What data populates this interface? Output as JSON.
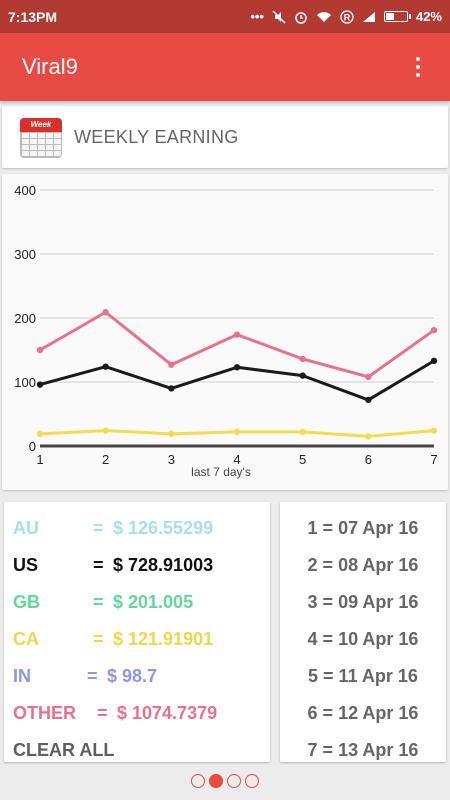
{
  "status_bar": {
    "time": "7:13PM",
    "battery": "42%",
    "battery_level": 0.42,
    "icons": [
      "dots-icon",
      "mute-icon",
      "alarm-icon",
      "wifi-icon",
      "registered-icon",
      "signal-icon",
      "battery-icon"
    ]
  },
  "app_bar": {
    "title": "Viral9"
  },
  "header": {
    "calendar_label": "Week",
    "title": "WEEKLY EARNING"
  },
  "chart_data": {
    "type": "line",
    "x": [
      1,
      2,
      3,
      4,
      5,
      6,
      7
    ],
    "xlabel": "last 7 day's",
    "ylim": [
      0,
      400
    ],
    "yticks": [
      0,
      100,
      200,
      300,
      400
    ],
    "grid": true,
    "series": [
      {
        "color": "#e8718c",
        "values": [
          150,
          209,
          127,
          174,
          136,
          108,
          181
        ]
      },
      {
        "color": "#1a1a1a",
        "values": [
          96,
          124,
          90,
          123,
          110,
          72,
          133
        ]
      },
      {
        "color": "#f5dc4f",
        "values": [
          19,
          24,
          19,
          22,
          22,
          15,
          24
        ]
      }
    ]
  },
  "stats": [
    {
      "country": "AU",
      "eq": "=",
      "amount": "$ 126.55299",
      "color": "#a6dff0"
    },
    {
      "country": "US",
      "eq": "=",
      "amount": "$ 728.91003",
      "color": "#111111"
    },
    {
      "country": "GB",
      "eq": "=",
      "amount": "$ 201.005",
      "color": "#5fd99a"
    },
    {
      "country": "CA",
      "eq": "=",
      "amount": "$ 121.91901",
      "color": "#f0d74a"
    },
    {
      "country": "IN",
      "eq": "=",
      "amount": "$ 98.7",
      "color": "#8f95e8"
    },
    {
      "country": "OTHER",
      "eq": "=",
      "amount": "$ 1074.7379",
      "color": "#e8718c"
    }
  ],
  "clear_all_label": "CLEAR ALL",
  "days": [
    "1 = 07 Apr 16",
    "2 = 08 Apr 16",
    "3 = 09 Apr 16",
    "4 = 10 Apr 16",
    "5 = 11 Apr 16",
    "6 = 12 Apr 16",
    "7 = 13 Apr 16"
  ],
  "pager": {
    "count": 4,
    "active_index": 1
  },
  "colors": {
    "accent": "#e84a44",
    "status_bar": "#b33a33"
  }
}
